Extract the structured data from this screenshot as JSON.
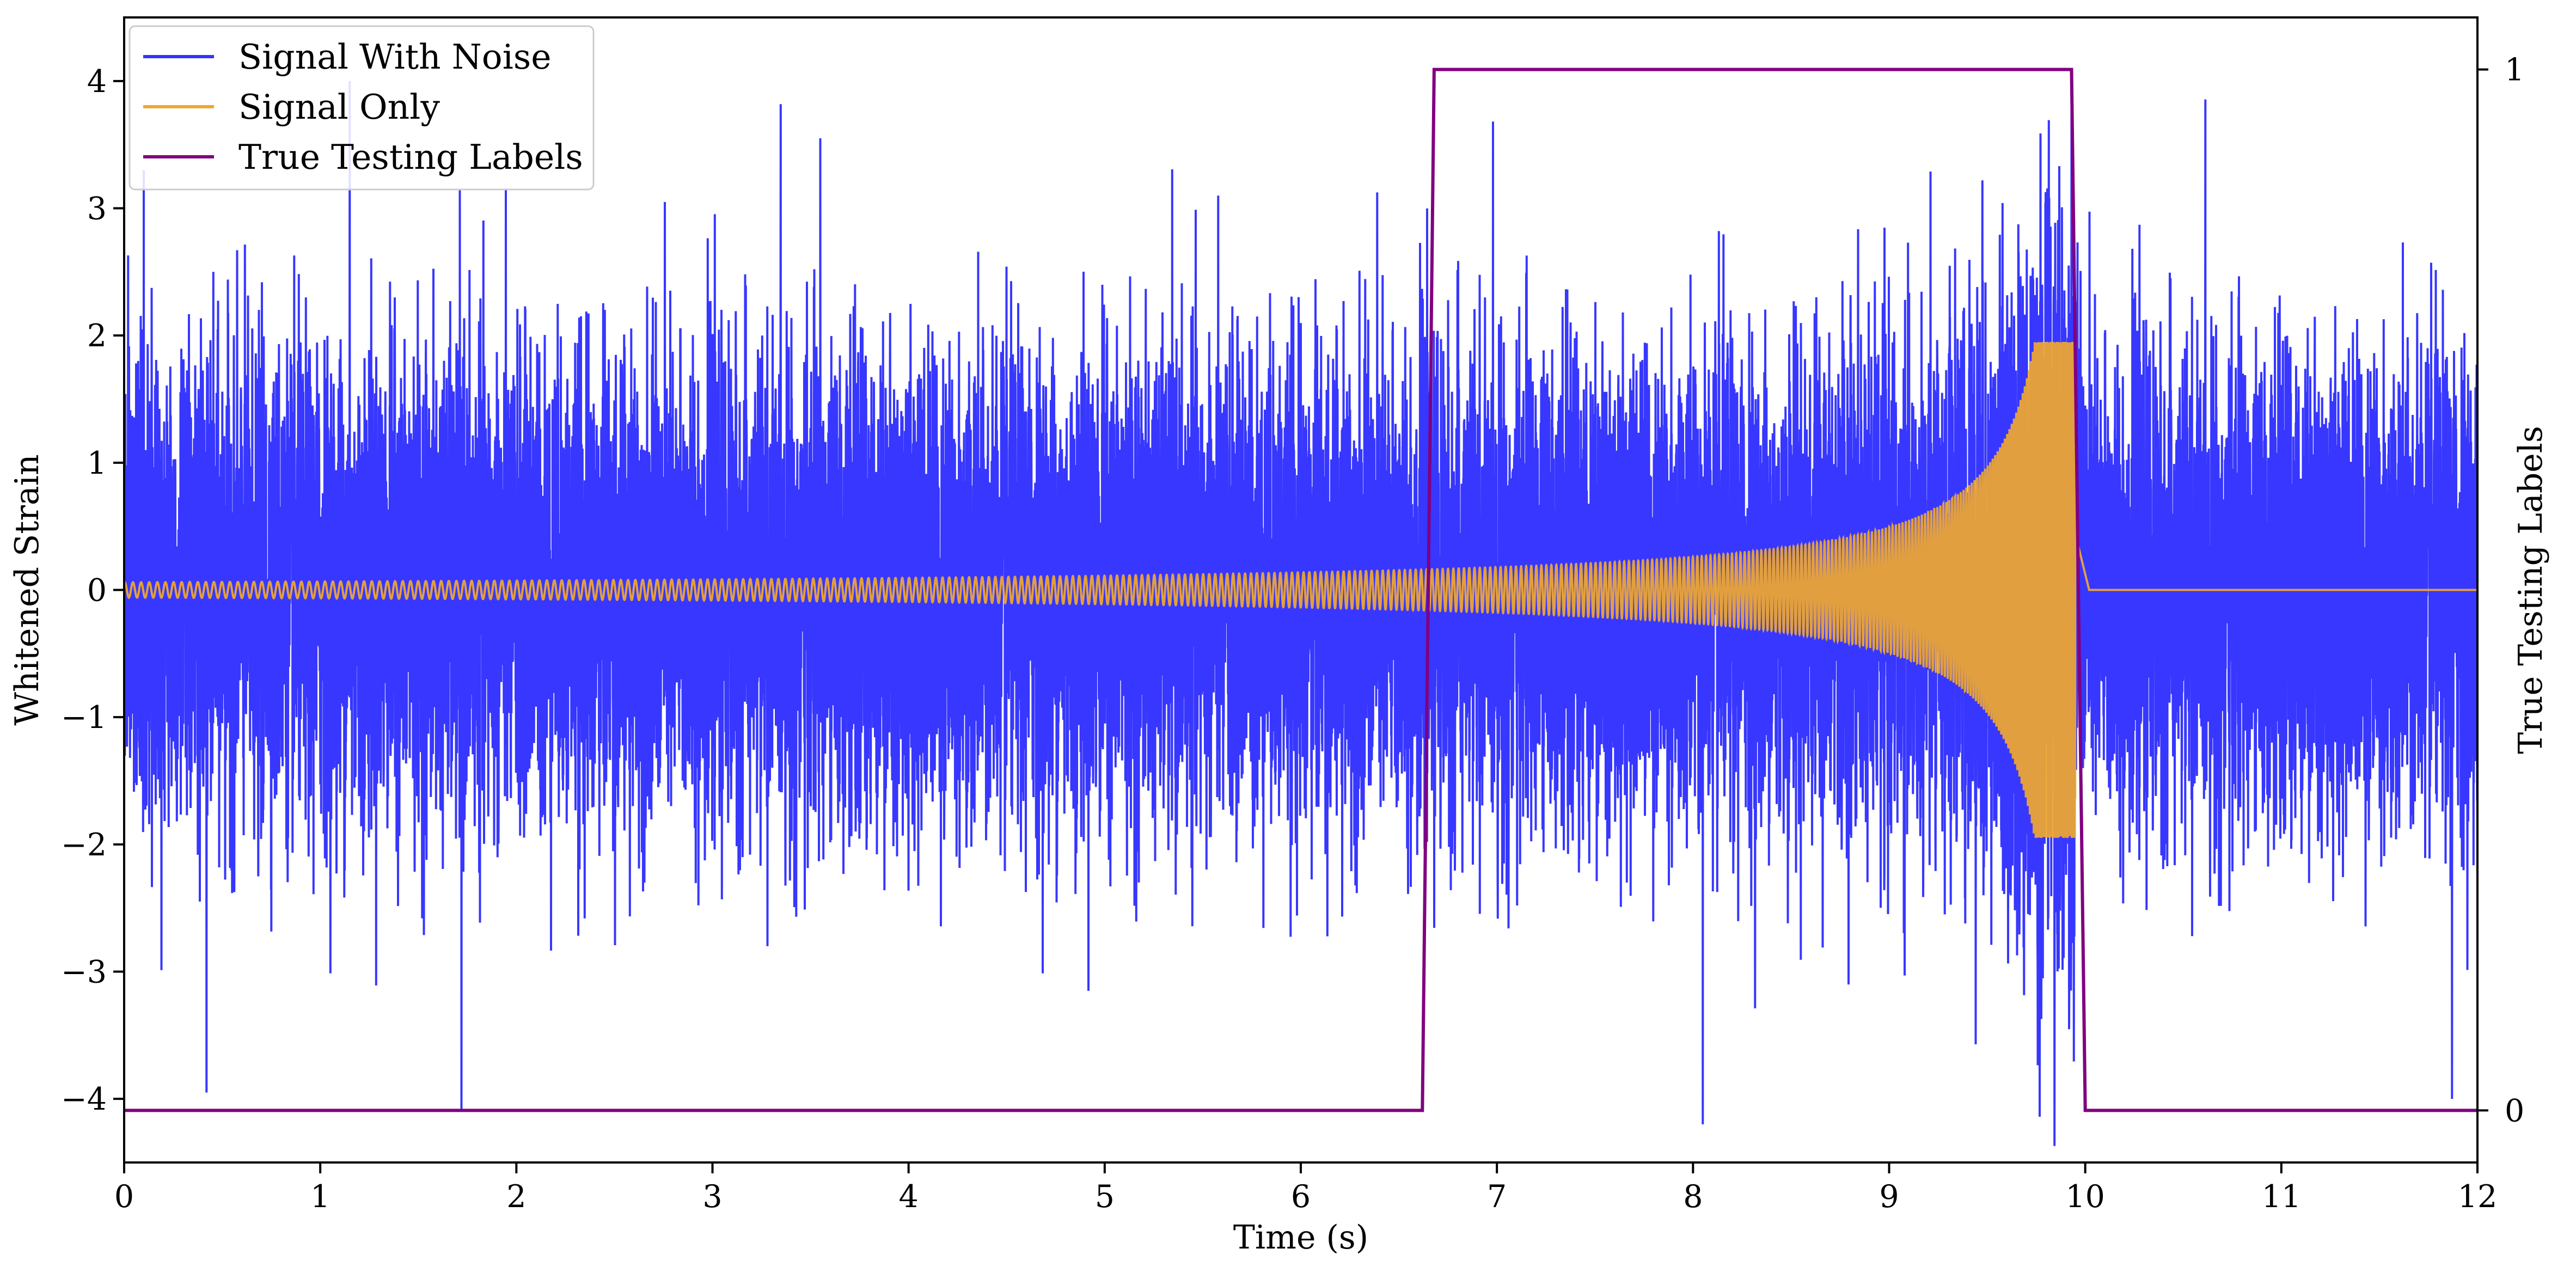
{
  "chart_data": {
    "type": "line",
    "xlabel": "Time (s)",
    "ylabel": "Whitened Strain",
    "y2label": "True Testing Labels",
    "xlim": [
      0,
      12
    ],
    "ylim": [
      -4.5,
      4.5
    ],
    "y2lim": [
      -0.05,
      1.05
    ],
    "xticks": [
      0,
      1,
      2,
      3,
      4,
      5,
      6,
      7,
      8,
      9,
      10,
      11,
      12
    ],
    "xtick_labels": [
      "0",
      "1",
      "2",
      "3",
      "4",
      "5",
      "6",
      "7",
      "8",
      "9",
      "10",
      "11",
      "12"
    ],
    "yticks": [
      -4,
      -3,
      -2,
      -1,
      0,
      1,
      2,
      3,
      4
    ],
    "ytick_labels": [
      "−4",
      "−3",
      "−2",
      "−1",
      "0",
      "1",
      "2",
      "3",
      "4"
    ],
    "y2ticks": [
      0,
      1
    ],
    "y2tick_labels": [
      "0",
      "1"
    ],
    "grid": false,
    "legend_position": "upper-left",
    "series": [
      {
        "name": "Signal With Noise",
        "axis": "left",
        "color": "#3333ff",
        "description_points": {
          "noise_std": 0.9,
          "notable_spikes": [
            [
              0.1,
              3.3
            ],
            [
              0.42,
              -3.95
            ],
            [
              1.15,
              4.0
            ],
            [
              1.72,
              -4.1
            ],
            [
              3.55,
              3.55
            ],
            [
              8.05,
              -4.2
            ],
            [
              9.93,
              3.95
            ],
            [
              11.87,
              -4.0
            ]
          ]
        }
      },
      {
        "name": "Signal Only",
        "axis": "left",
        "color": "#f0a830",
        "chirp": {
          "start_time": 0,
          "merger_time": 9.95,
          "end_time": 10.02,
          "start_amplitude": 0.06,
          "peak_amplitude": 1.95,
          "start_frequency_hz": 24,
          "after_merger_value": 0
        }
      },
      {
        "name": "True Testing Labels",
        "axis": "right",
        "color": "#800080",
        "x": [
          0,
          6.62,
          6.68,
          9.93,
          10.0,
          12
        ],
        "values": [
          0,
          0,
          1,
          1,
          0,
          0
        ]
      }
    ]
  }
}
